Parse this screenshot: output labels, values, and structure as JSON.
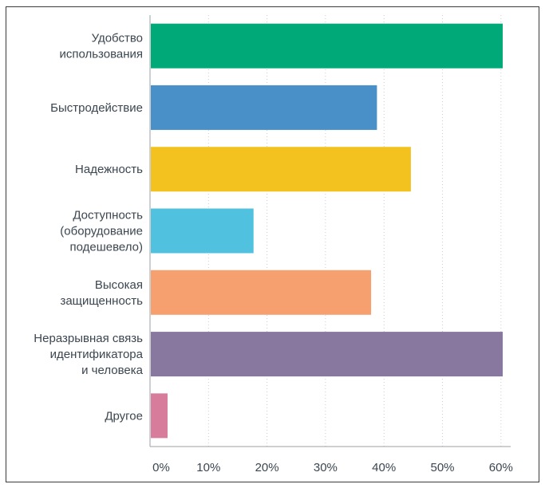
{
  "chart_data": {
    "type": "bar",
    "orientation": "horizontal",
    "categories": [
      "Удобство\nиспользования",
      "Быстродействие",
      "Надежность",
      "Доступность\n(оборудование\nподешевело)",
      "Высокая\nзащищенность",
      "Неразрывная связь\nидентификатора\nи человека",
      "Другое"
    ],
    "values": [
      60.3,
      38.8,
      44.6,
      17.7,
      37.8,
      60.3,
      3.0
    ],
    "colors": [
      "#00aa78",
      "#4a90c8",
      "#f4c21e",
      "#50c2e0",
      "#f6a070",
      "#8878a0",
      "#d87c9c"
    ],
    "xlim": [
      0,
      65
    ],
    "xticks": [
      0,
      10,
      20,
      30,
      40,
      50,
      60
    ],
    "xtick_labels": [
      "0%",
      "10%",
      "20%",
      "30%",
      "40%",
      "50%",
      "60%"
    ],
    "grid": "vertical-dotted",
    "title": "",
    "xlabel": "",
    "ylabel": ""
  }
}
